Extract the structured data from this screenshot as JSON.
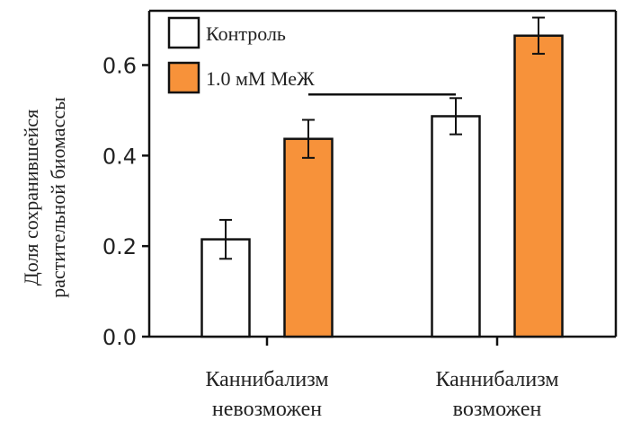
{
  "chart_data": {
    "type": "bar",
    "title": "",
    "xlabel": "",
    "ylabel": [
      "Доля сохранившейся",
      "растительной биомассы"
    ],
    "ylim": [
      0,
      0.72
    ],
    "yticks": [
      "0.0",
      "0.2",
      "0.4",
      "0.6"
    ],
    "categories": [
      [
        "Каннибализм",
        "невозможен"
      ],
      [
        "Каннибализм",
        "возможен"
      ]
    ],
    "series": [
      {
        "name": "Контроль",
        "color": "#ffffff",
        "values": [
          0.215,
          0.487
        ],
        "errors": [
          0.043,
          0.04
        ]
      },
      {
        "name": "1.0 мМ МеЖ",
        "color": "#f7923a",
        "values": [
          0.437,
          0.665
        ],
        "errors": [
          0.042,
          0.04
        ]
      }
    ],
    "bracket": {
      "from_category": 0,
      "from_series": 1,
      "to_category": 1,
      "to_series": 0,
      "y": 0.535
    },
    "legend_position": "top-left",
    "grid": false
  }
}
